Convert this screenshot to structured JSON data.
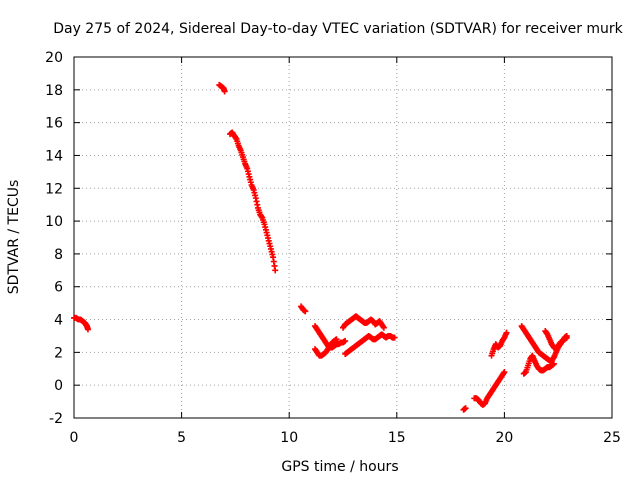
{
  "chart_data": {
    "type": "scatter",
    "title": "Day 275 of 2024, Sidereal Day-to-day VTEC variation (SDTVAR) for receiver murk",
    "xlabel": "GPS time / hours",
    "ylabel": "SDTVAR / TECUs",
    "xlim": [
      0,
      25
    ],
    "ylim": [
      -2,
      20
    ],
    "xticks": [
      "0",
      "5",
      "10",
      "15",
      "20",
      "25"
    ],
    "yticks": [
      "-2",
      "0",
      "2",
      "4",
      "6",
      "8",
      "10",
      "12",
      "14",
      "16",
      "18",
      "20"
    ],
    "grid": true,
    "marker": "+",
    "colors": {
      "series": "#ff0000",
      "grid": "#a0a0a0",
      "axis": "#000000"
    },
    "segments": [
      {
        "x": [
          0.0,
          0.1,
          0.2,
          0.3,
          0.4,
          0.5,
          0.55,
          0.6,
          0.65
        ],
        "y": [
          4.1,
          4.1,
          4.0,
          4.0,
          3.9,
          3.8,
          3.7,
          3.6,
          3.4
        ]
      },
      {
        "x": [
          6.75,
          6.85,
          6.95,
          7.0
        ],
        "y": [
          18.3,
          18.2,
          18.1,
          17.9
        ]
      },
      {
        "x": [
          7.25,
          7.35,
          7.45,
          7.55,
          7.65,
          7.75,
          7.85,
          7.95,
          8.05,
          8.15,
          8.25,
          8.35,
          8.45,
          8.55,
          8.65,
          8.75,
          8.85,
          8.95,
          9.05,
          9.15,
          9.25,
          9.35
        ],
        "y": [
          15.3,
          15.4,
          15.2,
          15.0,
          14.6,
          14.3,
          13.9,
          13.5,
          13.2,
          12.7,
          12.2,
          11.9,
          11.4,
          10.8,
          10.4,
          10.2,
          9.8,
          9.3,
          8.8,
          8.3,
          7.8,
          7.0
        ]
      },
      {
        "x": [
          10.55,
          10.65,
          10.75
        ],
        "y": [
          4.8,
          4.6,
          4.5
        ]
      },
      {
        "x": [
          11.2,
          11.3,
          11.4,
          11.5,
          11.6,
          11.7,
          11.8,
          11.9,
          12.0,
          12.1,
          12.2,
          12.3,
          12.4,
          12.5,
          12.6
        ],
        "y": [
          3.6,
          3.4,
          3.2,
          3.0,
          2.8,
          2.6,
          2.4,
          2.3,
          2.3,
          2.4,
          2.5,
          2.5,
          2.6,
          2.6,
          2.7
        ]
      },
      {
        "x": [
          11.2,
          11.3,
          11.4,
          11.5,
          11.6,
          11.7,
          11.8,
          11.9,
          12.0,
          12.1,
          12.2
        ],
        "y": [
          2.2,
          2.0,
          1.8,
          1.8,
          1.9,
          2.0,
          2.2,
          2.4,
          2.6,
          2.7,
          2.8
        ]
      },
      {
        "x": [
          12.5,
          12.6,
          12.7,
          12.8,
          12.9,
          13.0,
          13.1,
          13.2,
          13.3,
          13.4,
          13.5,
          13.6,
          13.7,
          13.8,
          13.9,
          14.0,
          14.1,
          14.2,
          14.3,
          14.4
        ],
        "y": [
          3.5,
          3.7,
          3.8,
          3.9,
          4.0,
          4.1,
          4.2,
          4.1,
          4.0,
          3.9,
          3.8,
          3.8,
          3.9,
          4.0,
          3.9,
          3.7,
          3.8,
          3.9,
          3.7,
          3.5
        ]
      },
      {
        "x": [
          12.6,
          12.7,
          12.8,
          12.9,
          13.0,
          13.1,
          13.2,
          13.3,
          13.4,
          13.5,
          13.6,
          13.7,
          13.8,
          13.9,
          14.0,
          14.1,
          14.2,
          14.3,
          14.4,
          14.5,
          14.6,
          14.7,
          14.8,
          14.9
        ],
        "y": [
          1.9,
          2.0,
          2.1,
          2.2,
          2.3,
          2.4,
          2.5,
          2.6,
          2.7,
          2.8,
          2.9,
          3.0,
          2.9,
          2.8,
          2.8,
          2.9,
          3.0,
          3.1,
          3.0,
          2.9,
          3.0,
          3.0,
          2.9,
          2.9
        ]
      },
      {
        "x": [
          18.1,
          18.2
        ],
        "y": [
          -1.5,
          -1.4
        ]
      },
      {
        "x": [
          18.6,
          18.7,
          18.8,
          18.9,
          19.0,
          19.1,
          19.2,
          19.3,
          19.4,
          19.5,
          19.6,
          19.7,
          19.8,
          19.9,
          20.0
        ],
        "y": [
          -0.8,
          -0.8,
          -0.9,
          -1.1,
          -1.2,
          -1.1,
          -0.8,
          -0.6,
          -0.4,
          -0.2,
          0.0,
          0.2,
          0.4,
          0.6,
          0.8
        ]
      },
      {
        "x": [
          19.4,
          19.5,
          19.6,
          19.7,
          19.8,
          19.9,
          20.0,
          20.1
        ],
        "y": [
          1.8,
          2.2,
          2.5,
          2.3,
          2.4,
          2.7,
          2.9,
          3.2
        ]
      },
      {
        "x": [
          20.8,
          20.9,
          21.0,
          21.1,
          21.2,
          21.3,
          21.4,
          21.5,
          21.6,
          21.7,
          21.8,
          21.9,
          22.0,
          22.1,
          22.2,
          22.3,
          22.4,
          22.5,
          22.6,
          22.7,
          22.8,
          22.9
        ],
        "y": [
          3.6,
          3.4,
          3.2,
          3.0,
          2.8,
          2.6,
          2.4,
          2.2,
          2.0,
          1.9,
          1.8,
          1.7,
          1.6,
          1.5,
          1.5,
          1.7,
          2.0,
          2.3,
          2.5,
          2.7,
          2.9,
          3.0
        ]
      },
      {
        "x": [
          20.9,
          21.0,
          21.1,
          21.2,
          21.3,
          21.4,
          21.5,
          21.6,
          21.7,
          21.8,
          21.9,
          22.0,
          22.1,
          22.2,
          22.3
        ],
        "y": [
          0.7,
          0.8,
          1.2,
          1.6,
          1.8,
          1.5,
          1.2,
          1.0,
          0.9,
          0.9,
          1.0,
          1.1,
          1.1,
          1.2,
          1.3
        ]
      },
      {
        "x": [
          21.9,
          22.0,
          22.1,
          22.2,
          22.3,
          22.4,
          22.5,
          22.6,
          22.7,
          22.8,
          22.9
        ],
        "y": [
          3.3,
          3.1,
          2.8,
          2.5,
          2.3,
          2.2,
          2.4,
          2.6,
          2.7,
          2.8,
          2.9
        ]
      }
    ]
  }
}
